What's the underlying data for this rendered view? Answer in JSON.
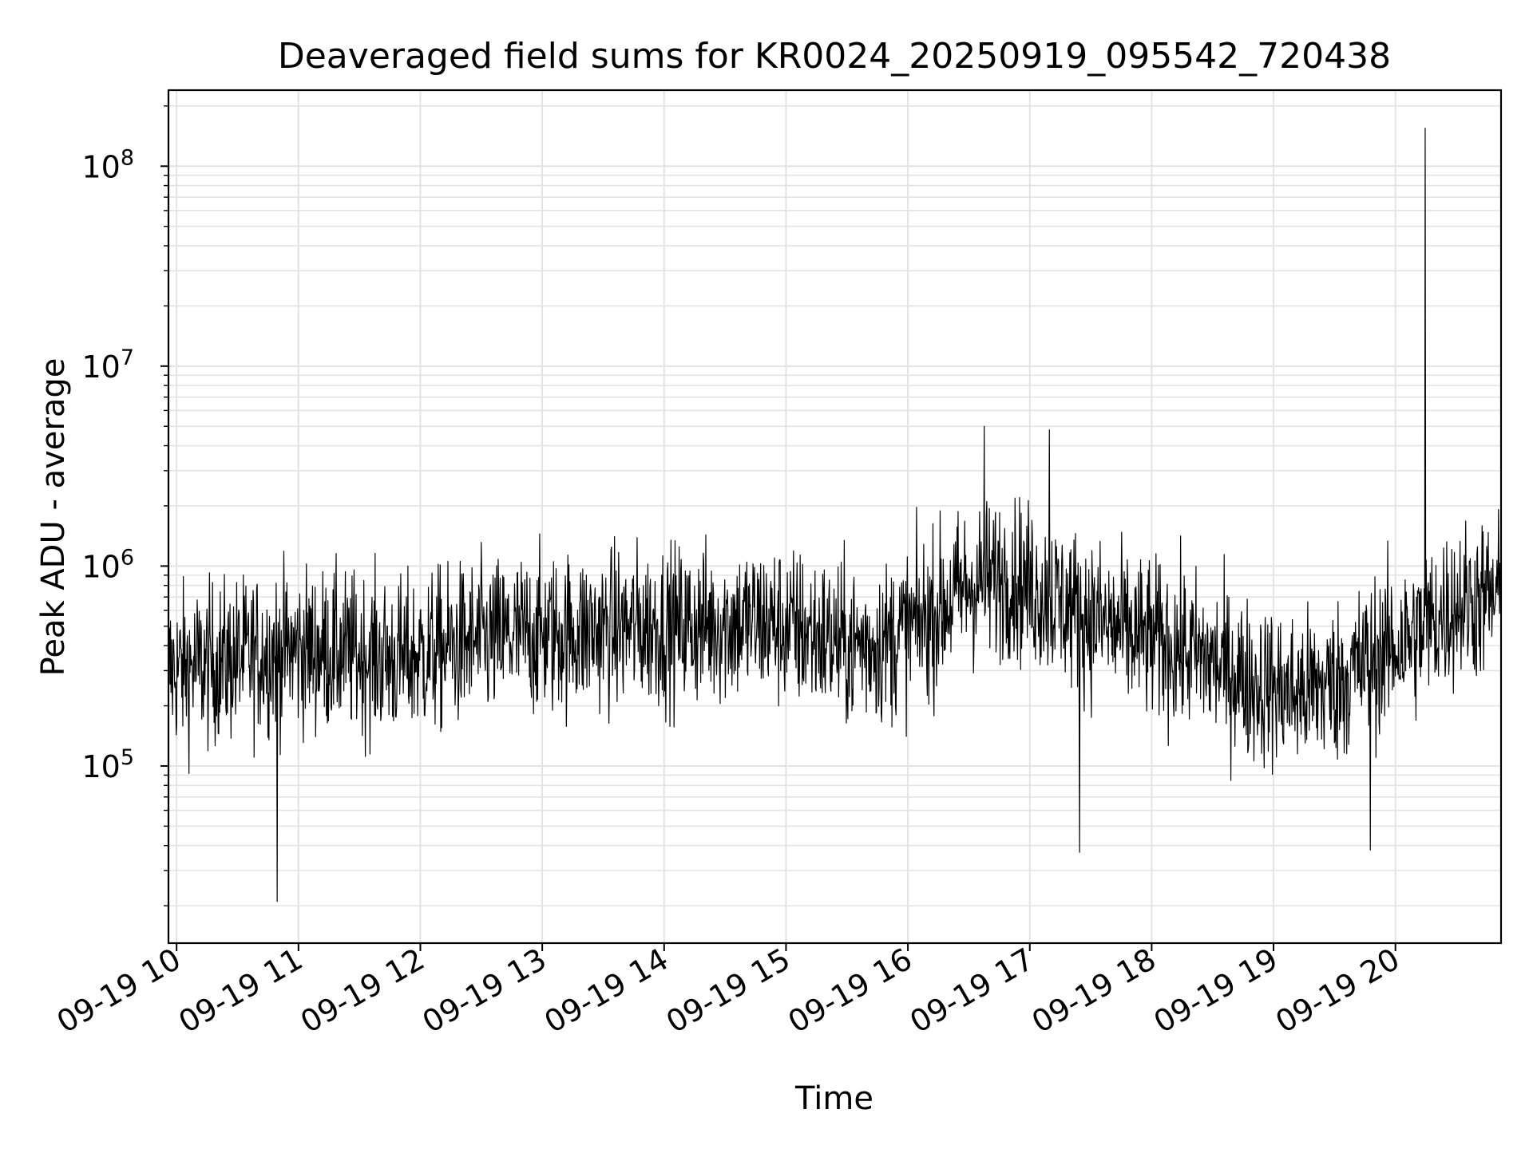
{
  "chart_data": {
    "type": "line",
    "title": "Deaveraged field sums for KR0024_20250919_095542_720438",
    "xlabel": "Time",
    "ylabel": "Peak ADU - average",
    "x_range": [
      "09-19 09:56",
      "09-19 20:52"
    ],
    "yscale": "log",
    "ylim": [
      13000,
      240000000
    ],
    "grid": true,
    "legend": "none",
    "x_ticks": [
      "09-19 10",
      "09-19 11",
      "09-19 12",
      "09-19 13",
      "09-19 14",
      "09-19 15",
      "09-19 16",
      "09-19 17",
      "09-19 18",
      "09-19 19",
      "09-19 20"
    ],
    "y_ticks": [
      {
        "base": "10",
        "exp": "5",
        "value": 100000
      },
      {
        "base": "10",
        "exp": "6",
        "value": 1000000
      },
      {
        "base": "10",
        "exp": "7",
        "value": 10000000
      },
      {
        "base": "10",
        "exp": "8",
        "value": 100000000
      }
    ],
    "series": [
      {
        "color": "#000000",
        "x": [
          "09:56",
          "10:15",
          "10:35",
          "10:50",
          "11:10",
          "11:30",
          "11:50",
          "12:10",
          "12:30",
          "12:50",
          "13:10",
          "13:30",
          "13:50",
          "14:10",
          "14:30",
          "14:50",
          "15:10",
          "15:30",
          "15:50",
          "16:10",
          "16:30",
          "16:50",
          "17:10",
          "17:30",
          "17:50",
          "18:10",
          "18:30",
          "18:50",
          "19:10",
          "19:30",
          "19:50",
          "20:10",
          "20:30",
          "20:52"
        ],
        "y": [
          300000,
          320000,
          350000,
          380000,
          380000,
          360000,
          340000,
          380000,
          420000,
          450000,
          460000,
          480000,
          500000,
          500000,
          520000,
          520000,
          470000,
          400000,
          420000,
          550000,
          800000,
          900000,
          700000,
          550000,
          450000,
          400000,
          330000,
          260000,
          230000,
          260000,
          350000,
          450000,
          650000,
          700000
        ],
        "spikes": [
          {
            "x": "10:50",
            "y": 21000
          },
          {
            "x": "17:25",
            "y": 37000
          },
          {
            "x": "19:48",
            "y": 38000
          },
          {
            "x": "20:15",
            "y": 155000000
          },
          {
            "x": "16:38",
            "y": 5000000
          },
          {
            "x": "17:10",
            "y": 4800000
          }
        ]
      }
    ]
  }
}
